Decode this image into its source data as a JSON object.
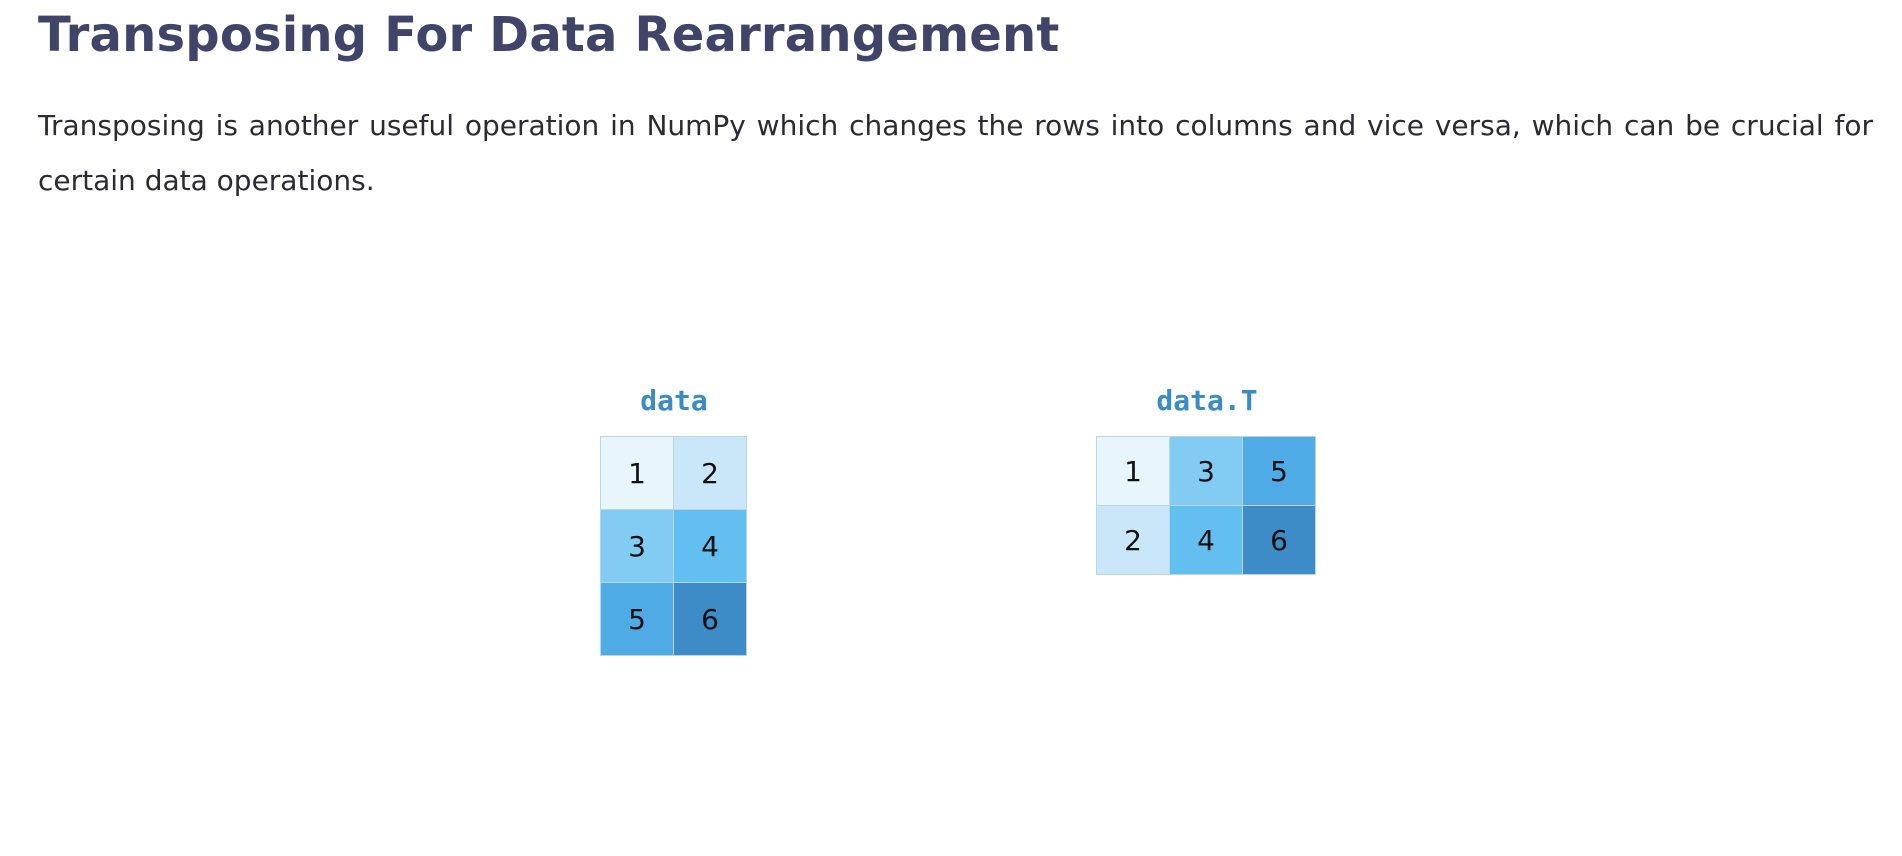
{
  "heading": {
    "title": "Transposing For Data Rearrangement"
  },
  "intro": {
    "text": "Transposing is another useful operation in NumPy which changes the rows into columns and vice versa, which can be crucial for certain data operations."
  },
  "palette": {
    "v1": "#e8f5fc",
    "v2": "#c9e7f8",
    "v3": "#82cbf3",
    "v4": "#62bff0",
    "v5": "#4eabe6",
    "v6": "#3d8bc7",
    "label": "#3b8bc4",
    "title": "#404468"
  },
  "matrices": [
    {
      "label": "data",
      "rows": [
        [
          "1",
          "2"
        ],
        [
          "3",
          "4"
        ],
        [
          "5",
          "6"
        ]
      ]
    },
    {
      "label": "data.T",
      "rows": [
        [
          "1",
          "3",
          "5"
        ],
        [
          "2",
          "4",
          "6"
        ]
      ]
    }
  ]
}
